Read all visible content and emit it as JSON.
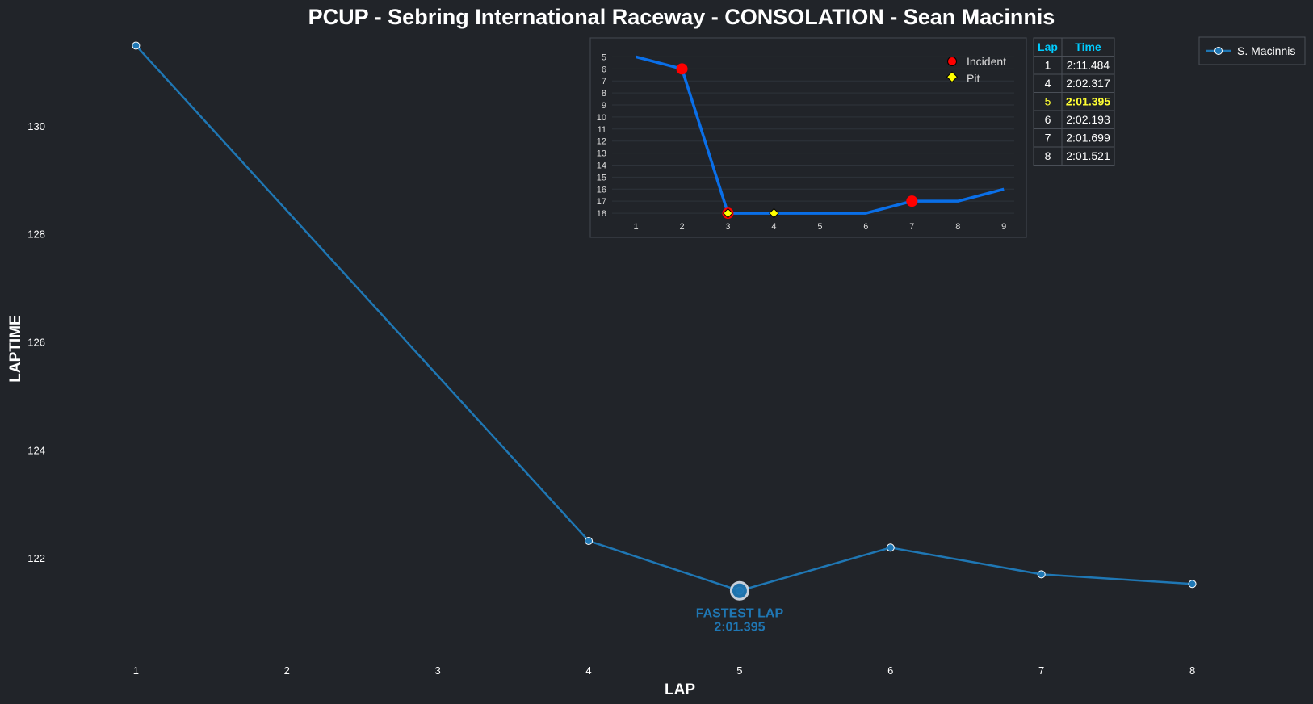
{
  "chart_data": [
    {
      "type": "line",
      "title": "PCUP - Sebring International Raceway - CONSOLATION - Sean Macinnis",
      "xlabel": "LAP",
      "ylabel": "LAPTIME",
      "x_ticks": [
        1,
        2,
        3,
        4,
        5,
        6,
        7,
        8
      ],
      "y_ticks": [
        122,
        124,
        126,
        128,
        130
      ],
      "xlim": [
        0.42,
        8.5
      ],
      "ylim": [
        120.3,
        131.7
      ],
      "grid": false,
      "series": [
        {
          "name": "S. Macinnis",
          "color": "#1f77b4",
          "points": [
            {
              "x": 1,
              "y": 131.484
            },
            {
              "x": 4,
              "y": 122.317
            },
            {
              "x": 5,
              "y": 121.395
            },
            {
              "x": 6,
              "y": 122.193
            },
            {
              "x": 7,
              "y": 121.699
            },
            {
              "x": 8,
              "y": 121.521
            }
          ]
        }
      ],
      "legend": {
        "placement": "top-right",
        "entries": [
          "S. Macinnis"
        ]
      },
      "annotation": {
        "line1": "FASTEST LAP",
        "line2": "2:01.395",
        "lap": 5,
        "value": 121.395,
        "color": "#1f77b4"
      }
    },
    {
      "type": "line",
      "placement": "inset top-center",
      "x_ticks": [
        1,
        2,
        3,
        4,
        5,
        6,
        7,
        8,
        9
      ],
      "y_ticks": [
        5,
        6,
        7,
        8,
        9,
        10,
        11,
        12,
        13,
        14,
        15,
        16,
        17,
        18
      ],
      "y_inverted": true,
      "xlim": [
        0.2,
        9.4
      ],
      "ylim": [
        4.3,
        18.6
      ],
      "grid": true,
      "series": [
        {
          "color": "#0a6fe8",
          "points": [
            {
              "x": 1,
              "y": 5
            },
            {
              "x": 2,
              "y": 6
            },
            {
              "x": 3,
              "y": 18
            },
            {
              "x": 4,
              "y": 18
            },
            {
              "x": 5,
              "y": 18
            },
            {
              "x": 6,
              "y": 18
            },
            {
              "x": 7,
              "y": 17
            },
            {
              "x": 8,
              "y": 17
            },
            {
              "x": 9,
              "y": 16
            }
          ]
        }
      ],
      "incidents": [
        {
          "x": 2,
          "y": 6
        },
        {
          "x": 3,
          "y": 18
        },
        {
          "x": 7,
          "y": 17
        }
      ],
      "pits": [
        {
          "x": 3,
          "y": 18
        },
        {
          "x": 4,
          "y": 18
        }
      ],
      "legend": {
        "placement": "top-right",
        "incident_label": "Incident",
        "pit_label": "Pit",
        "incident_color": "#ff0000",
        "pit_color": "#ffff00"
      }
    },
    {
      "type": "table",
      "columns": [
        "Lap",
        "Time"
      ],
      "header_color": "#00ccff",
      "highlight_color": "#ffff33",
      "rows": [
        {
          "lap": "1",
          "time": "2:11.484",
          "highlight": false
        },
        {
          "lap": "4",
          "time": "2:02.317",
          "highlight": false
        },
        {
          "lap": "5",
          "time": "2:01.395",
          "highlight": true
        },
        {
          "lap": "6",
          "time": "2:02.193",
          "highlight": false
        },
        {
          "lap": "7",
          "time": "2:01.699",
          "highlight": false
        },
        {
          "lap": "8",
          "time": "2:01.521",
          "highlight": false
        }
      ]
    }
  ]
}
